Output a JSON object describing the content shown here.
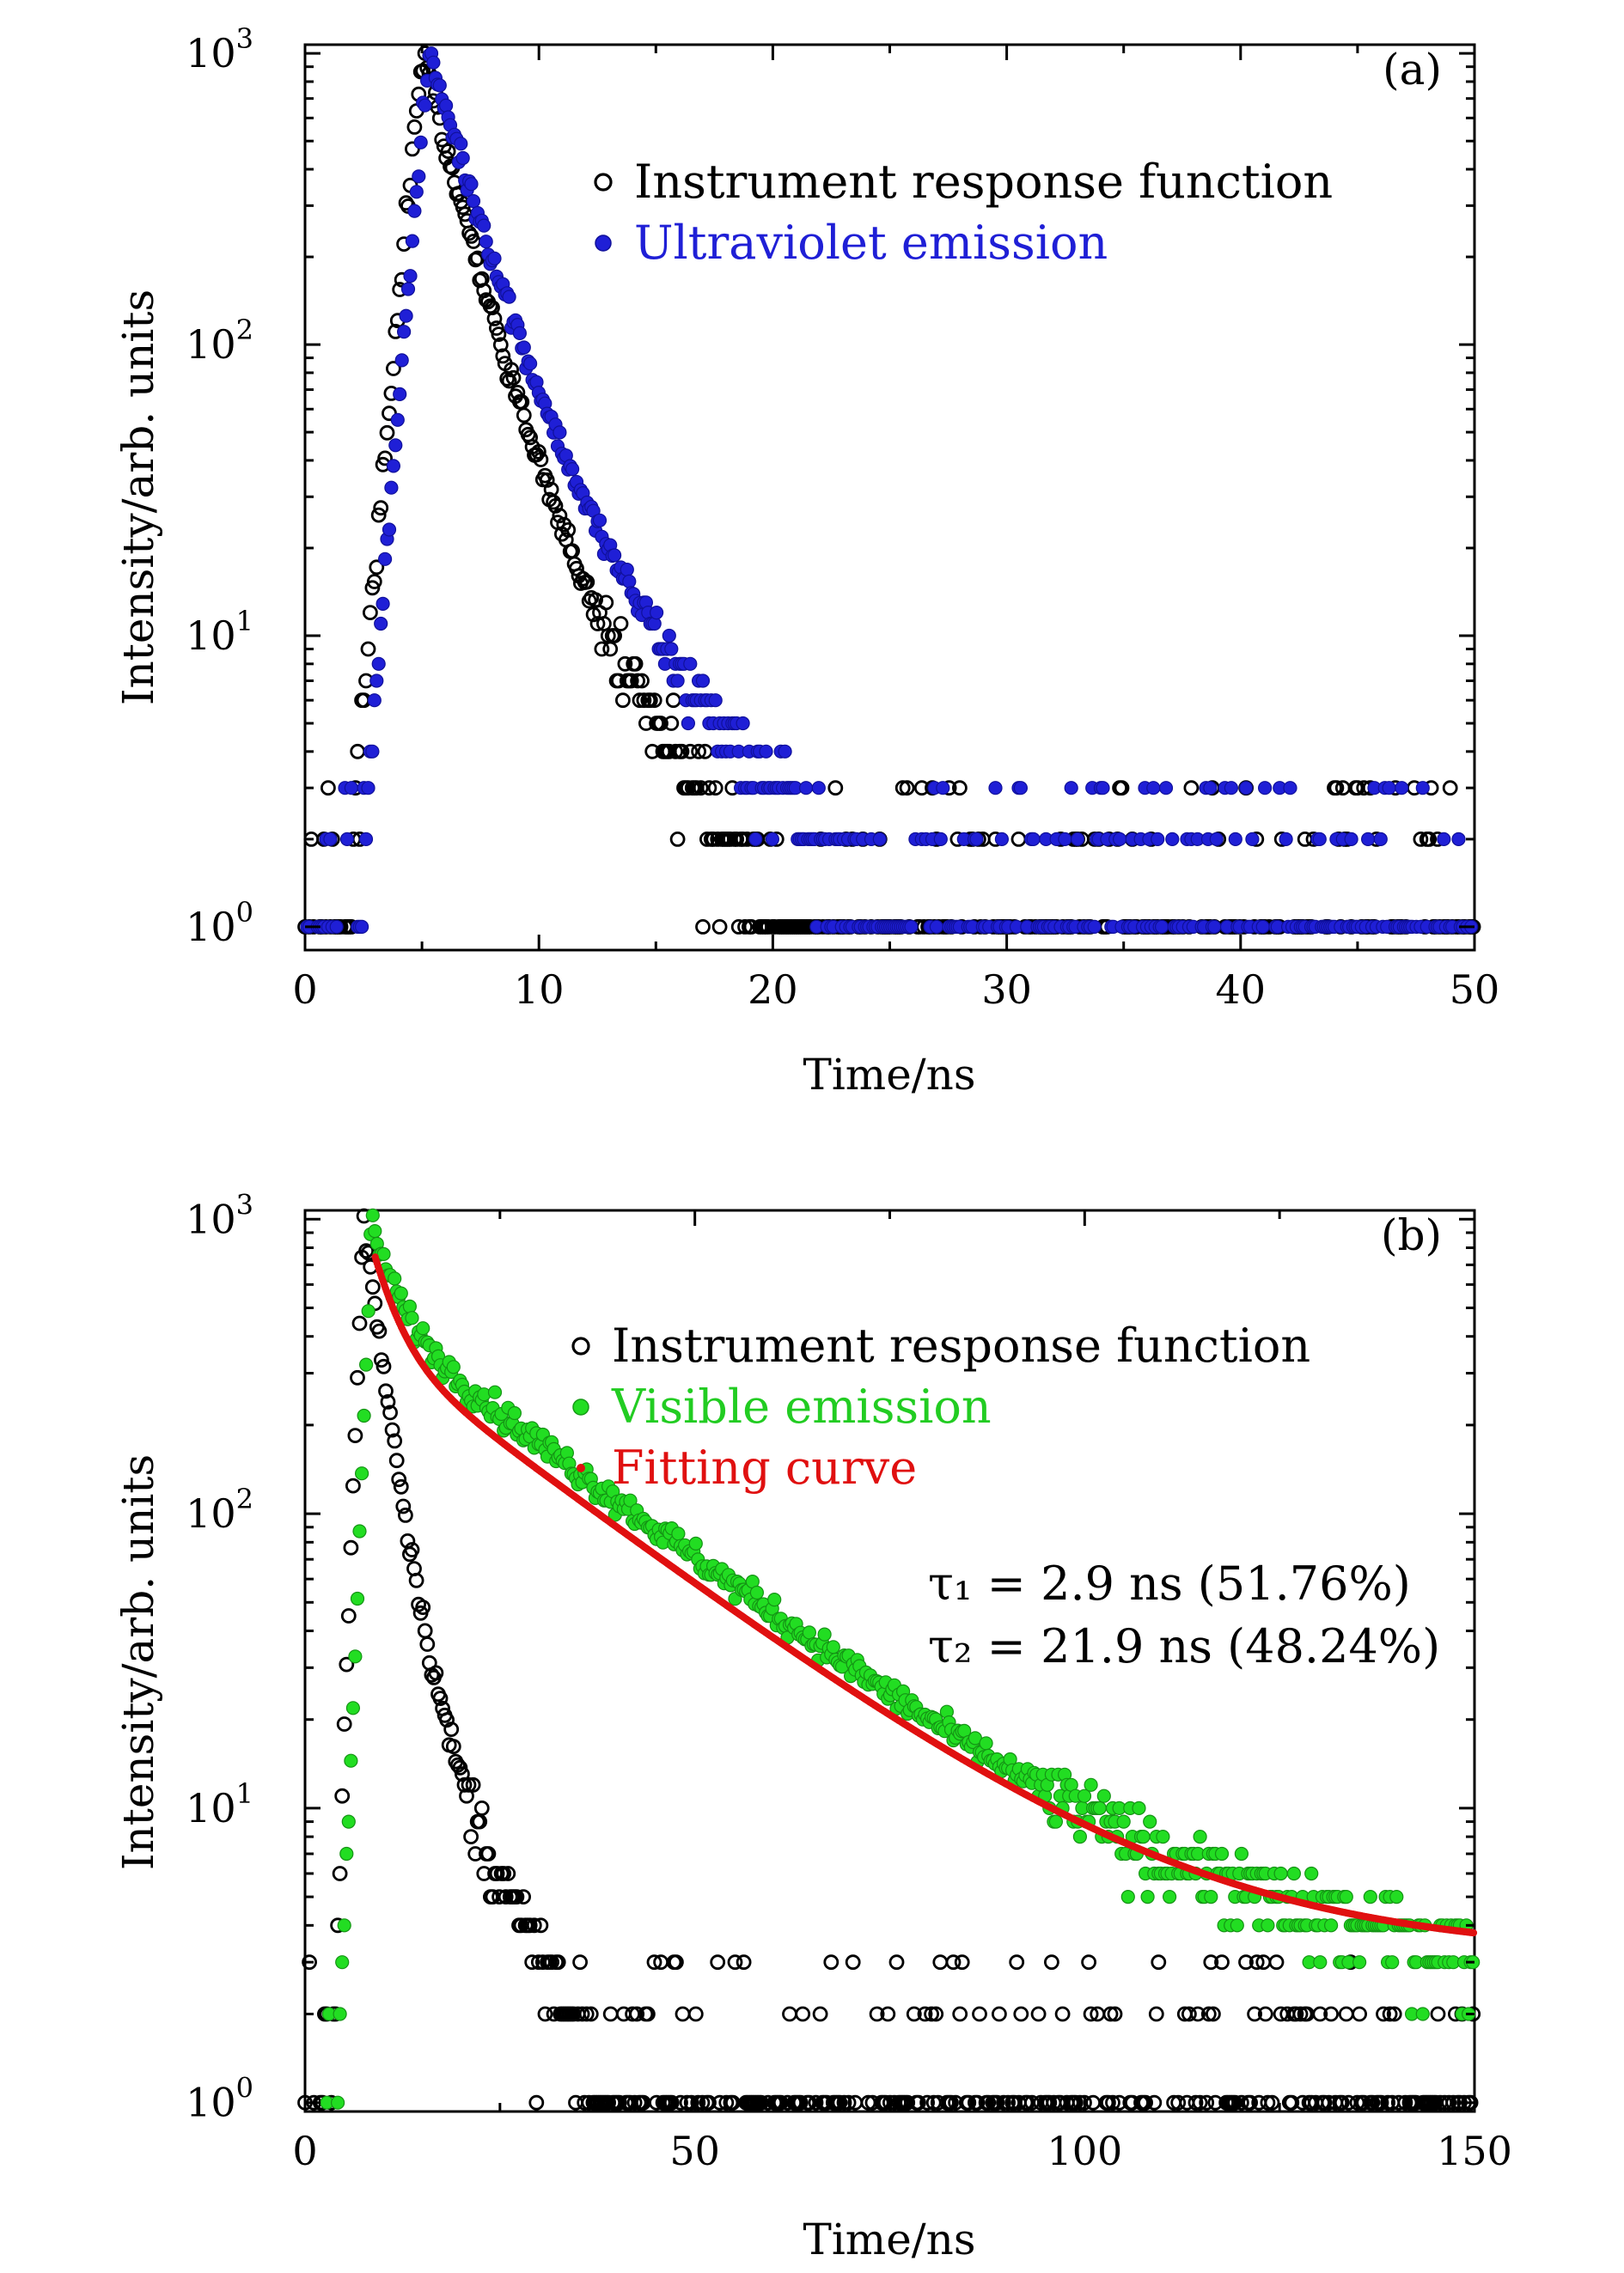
{
  "chart_data": [
    {
      "type": "scatter",
      "panel_label": "(a)",
      "xlabel": "Time/ns",
      "ylabel": "Intensity/arb. units",
      "xlim": [
        0,
        50
      ],
      "ylim_log10": [
        -0.08,
        3.03
      ],
      "x_ticks": [
        0,
        10,
        20,
        30,
        40,
        50
      ],
      "y_ticks": [
        {
          "base": "10",
          "exp": "0",
          "value": 1
        },
        {
          "base": "10",
          "exp": "1",
          "value": 10
        },
        {
          "base": "10",
          "exp": "2",
          "value": 100
        },
        {
          "base": "10",
          "exp": "3",
          "value": 1000
        }
      ],
      "legend_position": "top-right",
      "series": [
        {
          "name": "Instrument response function",
          "color": "#000000",
          "marker": "open-circle",
          "curve": "irf_a"
        },
        {
          "name": "Ultraviolet emission",
          "color": "#1f1fd6",
          "marker": "filled-circle",
          "curve": "uv"
        }
      ]
    },
    {
      "type": "scatter",
      "panel_label": "(b)",
      "xlabel": "Time/ns",
      "ylabel": "Intensity/arb. units",
      "xlim": [
        0,
        150
      ],
      "ylim_log10": [
        -0.03,
        3.03
      ],
      "x_ticks": [
        0,
        50,
        100,
        150
      ],
      "y_ticks": [
        {
          "base": "10",
          "exp": "0",
          "value": 1
        },
        {
          "base": "10",
          "exp": "1",
          "value": 10
        },
        {
          "base": "10",
          "exp": "2",
          "value": 100
        },
        {
          "base": "10",
          "exp": "3",
          "value": 1000
        }
      ],
      "legend_position": "top-right",
      "series": [
        {
          "name": "Instrument response function",
          "color": "#000000",
          "marker": "open-circle",
          "curve": "irf_b"
        },
        {
          "name": "Visible emission",
          "color": "#22dd22",
          "marker": "filled-circle",
          "curve": "vis"
        },
        {
          "name": "Fitting curve",
          "color": "#e01010",
          "marker": "small-dot",
          "curve": "fit"
        }
      ],
      "fit": {
        "tau1_ns": 2.9,
        "tau1_pct": 51.76,
        "tau2_ns": 21.9,
        "tau2_pct": 48.24,
        "tau1_label": "τ₁ = 2.9 ns (51.76%)",
        "tau2_label": "τ₂ = 21.9 ns (48.24%)",
        "peak_time_ns": 9,
        "peak_value": 950,
        "background": 3.2
      }
    }
  ]
}
